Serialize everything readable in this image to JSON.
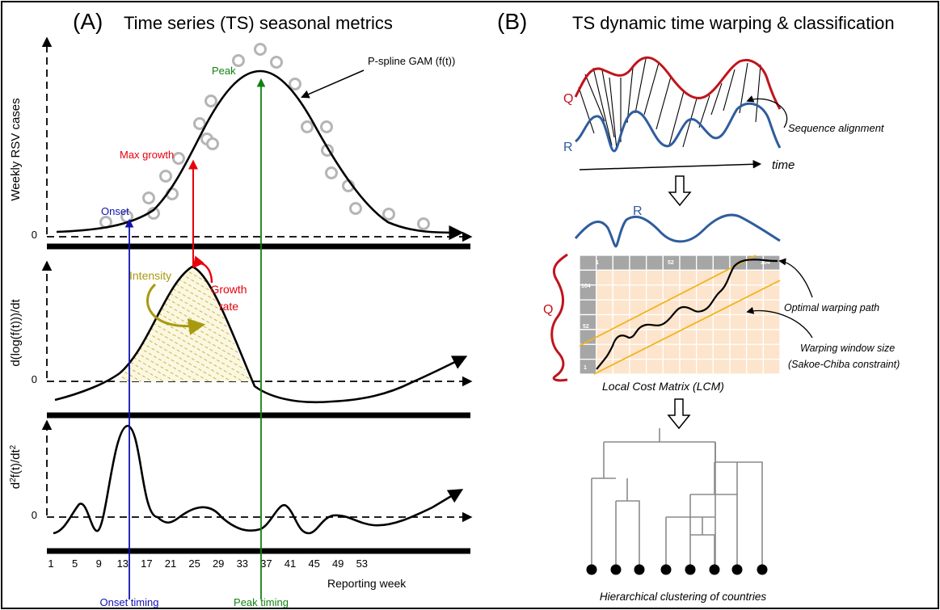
{
  "panel_a": {
    "letter": "(A)",
    "title": "Time series (TS) seasonal metrics",
    "curve_label": "P-spline GAM (f(t))",
    "ylabel_top": "Weekly RSV cases",
    "ylabel_mid": "d(log(f(t)))/dt",
    "ylabel_bot_prefix": "d",
    "ylabel_bot_sup1": "2",
    "ylabel_bot_mid": "f(t)/dt",
    "ylabel_bot_sup2": "2",
    "zero_label": "0",
    "onset": "Onset",
    "peak": "Peak",
    "max_growth": "Max growth",
    "intensity": "Intensity",
    "growth_rate_line1": "Growth",
    "growth_rate_line2": "rate",
    "xticks": [
      "1",
      "5",
      "9",
      "13",
      "17",
      "21",
      "25",
      "29",
      "33",
      "37",
      "41",
      "45",
      "49",
      "53"
    ],
    "xlabel": "Reporting week",
    "onset_timing": "Onset timing",
    "peak_timing": "Peak timing"
  },
  "panel_b": {
    "letter": "(B)",
    "title": "TS dynamic time warping & classification",
    "q_label": "Q",
    "r_label": "R",
    "sequence_alignment": "Sequence alignment",
    "time_label": "time",
    "r_label_2": "R",
    "q_label_2": "Q",
    "matrix_col_labels": [
      "1",
      "52",
      "104"
    ],
    "matrix_row_labels": [
      "104",
      "52",
      "1"
    ],
    "optimal_path": "Optimal warping path",
    "window_line1": "Warping window size",
    "window_line2": "(Sakoe-Chiba constraint)",
    "lcm_label": "Local Cost Matrix (LCM)",
    "clustering_label": "Hierarchical clustering of countries"
  },
  "colors": {
    "red": "#e8000b",
    "blue": "#1010b0",
    "green": "#138013",
    "olive": "#a89a10",
    "q_red": "#c0141c",
    "r_blue": "#2f5d9e",
    "orange": "#f2b31e",
    "cell": "#fde4cc",
    "gray_header": "#a6a6a6"
  },
  "icons": [
    "down-arrow-icon"
  ]
}
